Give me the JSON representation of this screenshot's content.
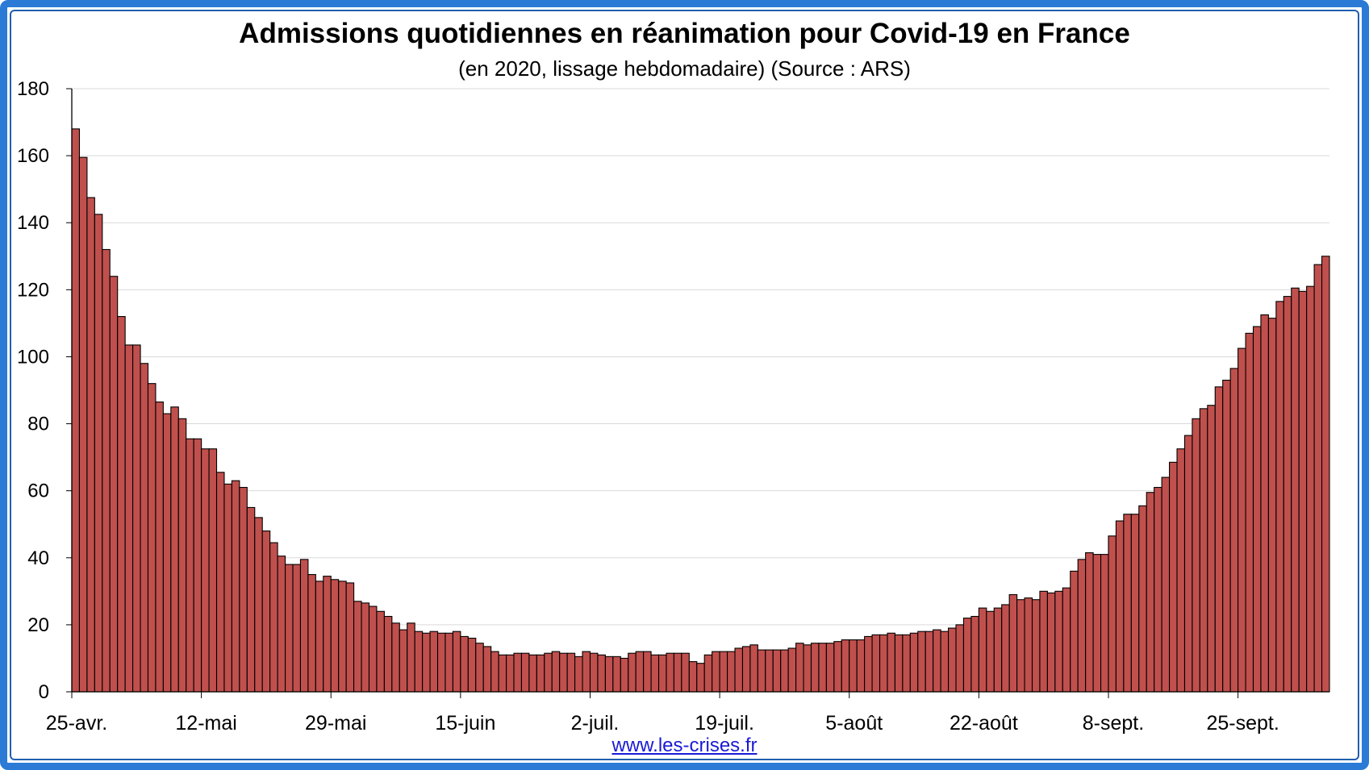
{
  "colors": {
    "frame": "#2b7bd6",
    "bar_fill": "#c0504d",
    "bar_stroke": "#000000",
    "grid": "#d9d9d9"
  },
  "chart_data": {
    "type": "bar",
    "title": "Admissions quotidiennes en réanimation pour Covid-19 en France",
    "subtitle": "(en 2020, lissage hebdomadaire) (Source : ARS)",
    "xlabel": "",
    "ylabel": "",
    "ylim": [
      0,
      180
    ],
    "yticks": [
      0,
      20,
      40,
      60,
      80,
      100,
      120,
      140,
      160,
      180
    ],
    "xtick_labels": [
      {
        "index": 0,
        "label": "25-avr."
      },
      {
        "index": 17,
        "label": "12-mai"
      },
      {
        "index": 34,
        "label": "29-mai"
      },
      {
        "index": 51,
        "label": "15-juin"
      },
      {
        "index": 68,
        "label": "2-juil."
      },
      {
        "index": 85,
        "label": "19-juil."
      },
      {
        "index": 102,
        "label": "5-août"
      },
      {
        "index": 119,
        "label": "22-août"
      },
      {
        "index": 136,
        "label": "8-sept."
      },
      {
        "index": 153,
        "label": "25-sept."
      }
    ],
    "grid": true,
    "legend": "none",
    "series": [
      {
        "values": [
          168,
          159.5,
          147.5,
          142.5,
          132,
          124,
          112,
          103.5,
          103.5,
          98,
          92,
          86.5,
          83,
          85,
          81.5,
          75.5,
          75.5,
          72.5,
          72.5,
          65.5,
          62,
          63,
          61,
          55,
          52,
          48,
          44.5,
          40.5,
          38,
          38,
          39.5,
          35,
          33,
          34.5,
          33.5,
          33,
          32.5,
          27,
          26.5,
          25.5,
          24,
          22.5,
          20.5,
          18.5,
          20.5,
          18,
          17.5,
          18,
          17.5,
          17.5,
          18,
          16.5,
          16,
          14.5,
          13.5,
          12,
          11,
          11,
          11.5,
          11.5,
          11,
          11,
          11.5,
          12,
          11.5,
          11.5,
          10.5,
          12,
          11.5,
          11,
          10.5,
          10.5,
          10,
          11.5,
          12,
          12,
          11,
          11,
          11.5,
          11.5,
          11.5,
          9,
          8.5,
          11,
          12,
          12,
          12,
          13,
          13.5,
          14,
          12.5,
          12.5,
          12.5,
          12.5,
          13,
          14.5,
          14,
          14.5,
          14.5,
          14.5,
          15,
          15.5,
          15.5,
          15.5,
          16.5,
          17,
          17,
          17.5,
          17,
          17,
          17.5,
          18,
          18,
          18.5,
          18,
          19,
          20,
          22,
          22.5,
          25,
          24,
          25,
          26,
          29,
          27.5,
          28,
          27.5,
          30,
          29.5,
          30,
          31,
          36,
          39.5,
          41.5,
          41,
          41,
          46.5,
          51,
          53,
          53,
          55.5,
          59.5,
          61,
          64,
          68.5,
          72.5,
          76.5,
          81.5,
          84.5,
          85.5,
          91,
          93,
          96.5,
          102.5,
          107,
          109,
          112.5,
          111.5,
          116.5,
          118,
          120.5,
          119.5,
          121,
          127.5,
          130
        ]
      }
    ]
  },
  "footer": {
    "link_text": "www.les-crises.fr"
  }
}
